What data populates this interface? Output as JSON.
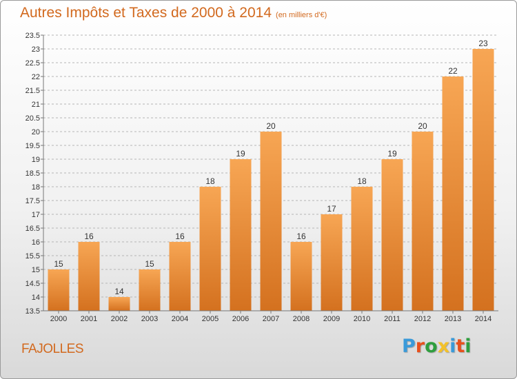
{
  "header": {
    "title": "Autres Impôts et Taxes de 2000 à 2014",
    "unit": "(en milliers d'€)"
  },
  "footer": {
    "city": "FAJOLLES",
    "logo_text": "Proxiti",
    "logo_colors": [
      "#3a9ad9",
      "#e8501c",
      "#2e9e3e",
      "#f3c12a",
      "#3a9ad9",
      "#e8501c",
      "#2e9e3e"
    ]
  },
  "colors": {
    "bar_light": "#f7a654",
    "bar_dark": "#d4711f",
    "title": "#d2691e"
  },
  "chart_data": {
    "type": "bar",
    "categories": [
      "2000",
      "2001",
      "2002",
      "2003",
      "2004",
      "2005",
      "2006",
      "2007",
      "2008",
      "2009",
      "2010",
      "2011",
      "2012",
      "2013",
      "2014"
    ],
    "values": [
      15,
      16,
      14,
      15,
      16,
      18,
      19,
      20,
      16,
      17,
      18,
      19,
      20,
      22,
      23
    ],
    "data_labels": [
      "15",
      "16",
      "14",
      "15",
      "16",
      "18",
      "19",
      "20",
      "16",
      "17",
      "18",
      "19",
      "20",
      "22",
      "23"
    ],
    "ylim": [
      13.5,
      23.5
    ],
    "yticks": [
      "13.5",
      "14",
      "14.5",
      "15",
      "15.5",
      "16",
      "16.5",
      "17",
      "17.5",
      "18",
      "18.5",
      "19",
      "19.5",
      "20",
      "20.5",
      "21",
      "21.5",
      "22",
      "22.5",
      "23",
      "23.5"
    ],
    "grid": true,
    "xlabel": "",
    "ylabel": ""
  }
}
